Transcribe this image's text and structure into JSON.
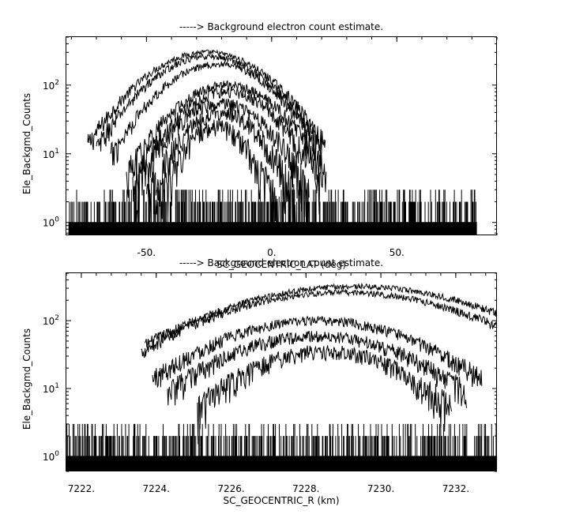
{
  "chart_data": [
    {
      "type": "line",
      "title": "-----> Background electron count estimate.",
      "xlabel": "SC_GEOCENTRIC_LAT (deg)",
      "ylabel": "Ele_Backgmd_Counts",
      "xlim": [
        -82,
        90
      ],
      "ylim": [
        0.65,
        500
      ],
      "yscale": "log",
      "x_ticks": [
        {
          "value": -50,
          "label": "-50."
        },
        {
          "value": 0,
          "label": "0."
        },
        {
          "value": 50,
          "label": "50."
        }
      ],
      "y_ticks": [
        {
          "value": 1,
          "base": "10",
          "exp": "0"
        },
        {
          "value": 10,
          "base": "10",
          "exp": "1"
        },
        {
          "value": 100,
          "base": "10",
          "exp": "2"
        }
      ],
      "grid": false,
      "background_noise": {
        "x_range": [
          -81,
          82
        ],
        "levels": [
          1,
          2,
          3
        ]
      },
      "series": [
        {
          "peak_x": -26,
          "peak_y": 300,
          "width": 19,
          "cutoff": 2.5
        },
        {
          "peak_x": -25,
          "peak_y": 260,
          "width": 18,
          "cutoff": 2.5
        },
        {
          "peak_x": -22,
          "peak_y": 200,
          "width": 17,
          "cutoff": 2.5
        },
        {
          "peak_x": -18,
          "peak_y": 100,
          "width": 16,
          "cutoff": 2.5
        },
        {
          "peak_x": -18,
          "peak_y": 80,
          "width": 15,
          "cutoff": 2.5
        },
        {
          "peak_x": -20,
          "peak_y": 55,
          "width": 14,
          "cutoff": 2.5
        },
        {
          "peak_x": -20,
          "peak_y": 40,
          "width": 12,
          "cutoff": 2.5
        },
        {
          "peak_x": -22,
          "peak_y": 25,
          "width": 10,
          "cutoff": 2.5
        }
      ]
    },
    {
      "type": "line",
      "title": "-----> Background electron count estimate.",
      "xlabel": "SC_GEOCENTRIC_R (km)",
      "ylabel": "Ele_Backgmd_Counts",
      "xlim": [
        7221.6,
        7233.1
      ],
      "ylim": [
        0.6,
        500
      ],
      "yscale": "log",
      "x_ticks": [
        {
          "value": 7222,
          "label": "7222."
        },
        {
          "value": 7224,
          "label": "7224."
        },
        {
          "value": 7226,
          "label": "7226."
        },
        {
          "value": 7228,
          "label": "7228."
        },
        {
          "value": 7230,
          "label": "7230."
        },
        {
          "value": 7232,
          "label": "7232."
        }
      ],
      "y_ticks": [
        {
          "value": 1,
          "base": "10",
          "exp": "0"
        },
        {
          "value": 10,
          "base": "10",
          "exp": "1"
        },
        {
          "value": 100,
          "base": "10",
          "exp": "2"
        }
      ],
      "grid": false,
      "background_noise": {
        "x_range": [
          7221.6,
          7233.1
        ],
        "levels": [
          1,
          2,
          3
        ]
      },
      "series": [
        {
          "peak_x": 7229.3,
          "peak_y": 320,
          "width": 2.8,
          "cutoff": 2.0
        },
        {
          "peak_x": 7229.0,
          "peak_y": 260,
          "width": 2.7,
          "cutoff": 2.0
        },
        {
          "peak_x": 7228.3,
          "peak_y": 100,
          "width": 2.2,
          "cutoff": 2.0
        },
        {
          "peak_x": 7228.3,
          "peak_y": 60,
          "width": 2.0,
          "cutoff": 2.0
        },
        {
          "peak_x": 7228.5,
          "peak_y": 35,
          "width": 1.7,
          "cutoff": 2.0
        }
      ]
    }
  ]
}
